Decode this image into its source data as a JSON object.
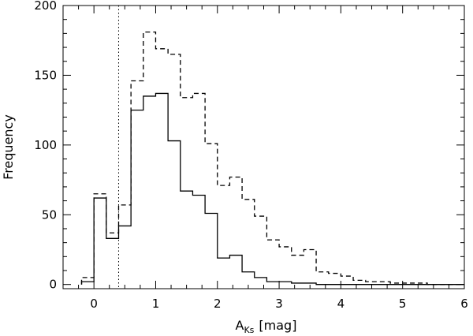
{
  "chart_data": {
    "type": "histogram",
    "title": "",
    "xlabel": {
      "main": "A",
      "sub": "Ks",
      "unit": "[mag]"
    },
    "ylabel": "Frequency",
    "xlim": [
      -0.5,
      6
    ],
    "ylim": [
      -3,
      200
    ],
    "xticks": [
      0,
      1,
      2,
      3,
      4,
      5,
      6
    ],
    "yticks": [
      0,
      50,
      100,
      150,
      200
    ],
    "xtick_labels": [
      "0",
      "1",
      "2",
      "3",
      "4",
      "5",
      "6"
    ],
    "ytick_labels": [
      "0",
      "50",
      "100",
      "150",
      "200"
    ],
    "vline": {
      "x": 0.4,
      "style": "dotted"
    },
    "bin_edges": [
      -0.2,
      0.0,
      0.2,
      0.4,
      0.6,
      0.8,
      1.0,
      1.2,
      1.4,
      1.6,
      1.8,
      2.0,
      2.2,
      2.4,
      2.6,
      2.8,
      3.0,
      3.2,
      3.4,
      3.6,
      3.8,
      4.0,
      4.2,
      4.4,
      4.6,
      4.8,
      5.0,
      5.2,
      5.4,
      5.6,
      5.8,
      6.0
    ],
    "series": [
      {
        "style": "solid",
        "values": [
          2,
          62,
          33,
          42,
          125,
          135,
          137,
          103,
          67,
          64,
          51,
          19,
          21,
          9,
          5,
          2,
          2,
          1,
          1,
          0,
          0,
          0,
          0,
          0,
          0,
          0,
          0,
          0,
          0,
          0,
          0
        ]
      },
      {
        "style": "dashed",
        "values": [
          5,
          65,
          37,
          57,
          146,
          181,
          169,
          165,
          134,
          137,
          101,
          71,
          77,
          61,
          49,
          32,
          27,
          21,
          25,
          9,
          8,
          6,
          3,
          2,
          2,
          1,
          1,
          1,
          0,
          0,
          0
        ]
      }
    ]
  }
}
